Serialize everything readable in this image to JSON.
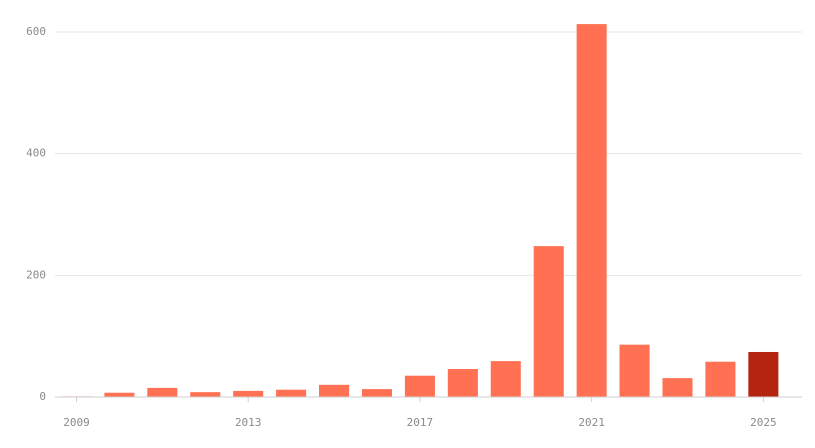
{
  "chart_data": {
    "type": "bar",
    "x": [
      2009,
      2010,
      2011,
      2012,
      2013,
      2014,
      2015,
      2016,
      2017,
      2018,
      2019,
      2020,
      2021,
      2022,
      2023,
      2024,
      2025
    ],
    "values": [
      1,
      7,
      15,
      8,
      10,
      12,
      20,
      13,
      35,
      46,
      59,
      248,
      613,
      86,
      31,
      58,
      74
    ],
    "colors": [
      "#ff7152",
      "#ff7152",
      "#ff7152",
      "#ff7152",
      "#ff7152",
      "#ff7152",
      "#ff7152",
      "#ff7152",
      "#ff7152",
      "#ff7152",
      "#ff7152",
      "#ff7152",
      "#ff7152",
      "#ff7152",
      "#ff7152",
      "#ff7152",
      "#b5240f"
    ],
    "xlim": [
      2008.5,
      2025.9
    ],
    "xticks": [
      2009,
      2013,
      2017,
      2021,
      2025
    ],
    "ylim": [
      0,
      600
    ],
    "yticks": [
      0,
      200,
      400,
      600
    ],
    "grid": true
  }
}
